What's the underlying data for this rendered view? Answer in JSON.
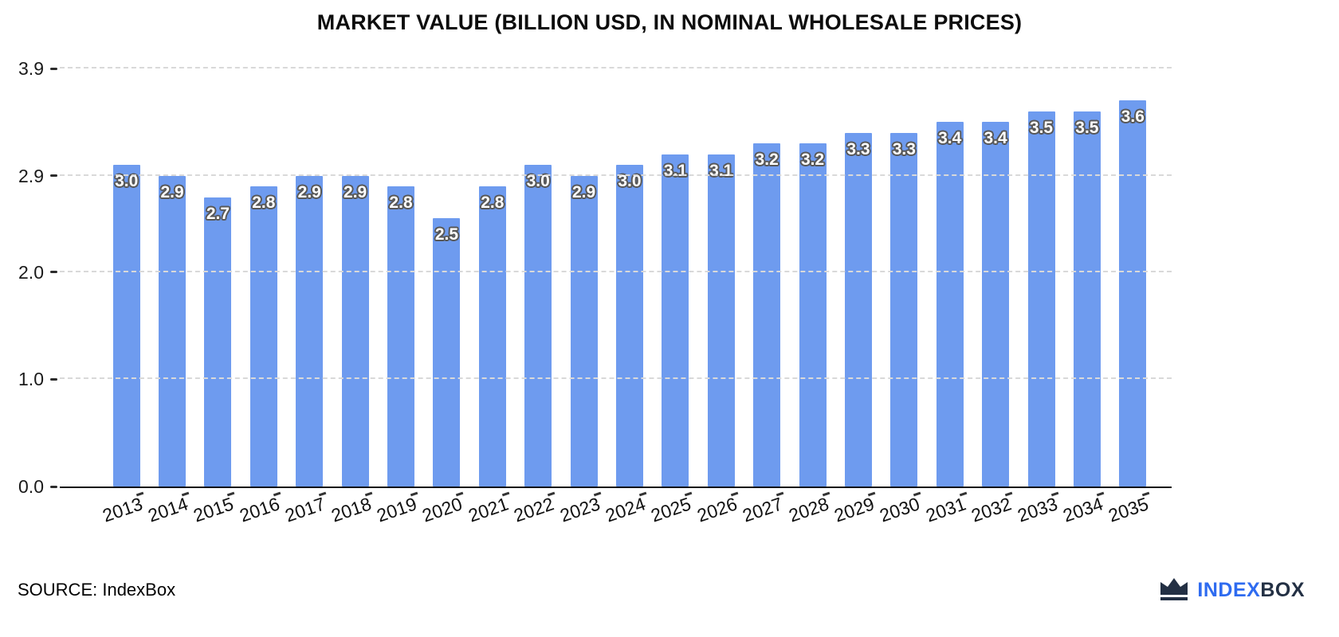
{
  "title": "MARKET VALUE (BILLION USD, IN NOMINAL WHOLESALE PRICES)",
  "source": {
    "label": "SOURCE: IndexBox"
  },
  "logo": {
    "index": "INDEX",
    "box": "BOX",
    "icon": "crown-icon"
  },
  "colors": {
    "bar": "#6e9bef",
    "grid": "#d9d9d9",
    "axis": "#111111",
    "value_label_fill": "#ffffff",
    "value_label_outline": "#585858",
    "logo_blue": "#2e6bf0",
    "logo_dark": "#233044"
  },
  "chart_data": {
    "type": "bar",
    "title": "MARKET VALUE (BILLION USD, IN NOMINAL WHOLESALE PRICES)",
    "xlabel": "",
    "ylabel": "",
    "categories": [
      "2013",
      "2014",
      "2015",
      "2016",
      "2017",
      "2018",
      "2019",
      "2020",
      "2021",
      "2022",
      "2023",
      "2024",
      "2025",
      "2026",
      "2027",
      "2028",
      "2029",
      "2030",
      "2031",
      "2032",
      "2033",
      "2034",
      "2035"
    ],
    "values": [
      3.0,
      2.9,
      2.7,
      2.8,
      2.9,
      2.9,
      2.8,
      2.5,
      2.8,
      3.0,
      2.9,
      3.0,
      3.1,
      3.1,
      3.2,
      3.2,
      3.3,
      3.3,
      3.4,
      3.4,
      3.5,
      3.5,
      3.6
    ],
    "value_labels": [
      "3.0",
      "2.9",
      "2.7",
      "2.8",
      "2.9",
      "2.9",
      "2.8",
      "2.5",
      "2.8",
      "3.0",
      "2.9",
      "3.0",
      "3.1",
      "3.1",
      "3.2",
      "3.2",
      "3.3",
      "3.3",
      "3.4",
      "3.4",
      "3.5",
      "3.5",
      "3.6"
    ],
    "ylim": [
      0,
      3.9
    ],
    "yticks": [
      0.0,
      1.0,
      2.0,
      2.9,
      3.9
    ],
    "ytick_labels": [
      "0.0",
      "1.0",
      "2.0",
      "2.9",
      "3.9"
    ],
    "grid": "horizontal dashed",
    "legend": "none"
  }
}
